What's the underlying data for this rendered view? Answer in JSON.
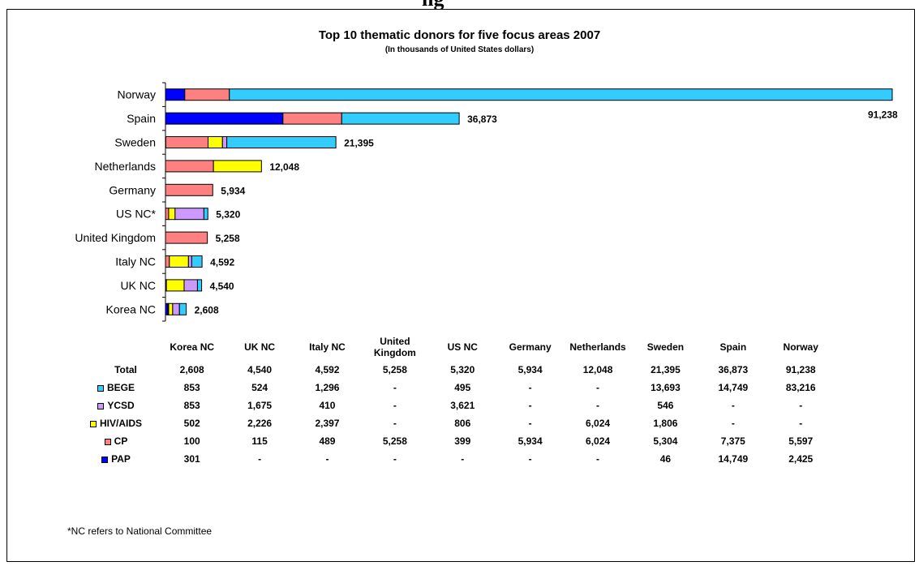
{
  "header_partial_text": "ng",
  "chart_data": {
    "type": "bar",
    "orientation": "horizontal",
    "stacked": true,
    "title": "Top 10 thematic donors for five focus areas 2007",
    "subtitle": "(In thousands of United States dollars)",
    "categories": [
      "Norway",
      "Spain",
      "Sweden",
      "Netherlands",
      "Germany",
      "US NC*",
      "United Kingdom",
      "Italy NC",
      "UK NC",
      "Korea NC"
    ],
    "totals": [
      91238,
      36873,
      21395,
      12048,
      5934,
      5320,
      5258,
      4592,
      4540,
      2608
    ],
    "total_labels": [
      "91,238",
      "36,873",
      "21,395",
      "12,048",
      "5,934",
      "5,320",
      "5,258",
      "4,592",
      "4,540",
      "2,608"
    ],
    "series": [
      {
        "name": "PAP",
        "color": "#0000FF",
        "values": [
          2425,
          14749,
          46,
          0,
          0,
          0,
          0,
          0,
          0,
          301
        ]
      },
      {
        "name": "CP",
        "color": "#FF8080",
        "values": [
          5597,
          7375,
          5304,
          6024,
          5934,
          399,
          5258,
          489,
          115,
          100
        ]
      },
      {
        "name": "HIV/AIDS",
        "color": "#FFFF00",
        "values": [
          0,
          0,
          1806,
          6024,
          0,
          806,
          0,
          2397,
          2226,
          502
        ]
      },
      {
        "name": "YCSD",
        "color": "#CC99FF",
        "values": [
          0,
          0,
          546,
          0,
          0,
          3621,
          0,
          410,
          1675,
          853
        ]
      },
      {
        "name": "BEGE",
        "color": "#33CCFF",
        "values": [
          83216,
          14749,
          13693,
          0,
          0,
          495,
          0,
          1296,
          524,
          853
        ]
      }
    ],
    "xlim": [
      0,
      91238
    ],
    "grid": false,
    "legend": "table-row-labels"
  },
  "table": {
    "columns": [
      "Korea NC",
      "UK NC",
      "Italy NC",
      "United Kingdom",
      "US NC",
      "Germany",
      "Netherlands",
      "Sweden",
      "Spain",
      "Norway"
    ],
    "rows": [
      {
        "label": "Total",
        "color": "",
        "cells": [
          "2,608",
          "4,540",
          "4,592",
          "5,258",
          "5,320",
          "5,934",
          "12,048",
          "21,395",
          "36,873",
          "91,238"
        ]
      },
      {
        "label": "BEGE",
        "color": "#33CCFF",
        "cells": [
          "853",
          "524",
          "1,296",
          "-",
          "495",
          "-",
          "-",
          "13,693",
          "14,749",
          "83,216"
        ]
      },
      {
        "label": "YCSD",
        "color": "#CC99FF",
        "cells": [
          "853",
          "1,675",
          "410",
          "-",
          "3,621",
          "-",
          "-",
          "546",
          "-",
          "-"
        ]
      },
      {
        "label": "HIV/AIDS",
        "color": "#FFFF00",
        "cells": [
          "502",
          "2,226",
          "2,397",
          "-",
          "806",
          "-",
          "6,024",
          "1,806",
          "-",
          "-"
        ]
      },
      {
        "label": "CP",
        "color": "#FF8080",
        "cells": [
          "100",
          "115",
          "489",
          "5,258",
          "399",
          "5,934",
          "6,024",
          "5,304",
          "7,375",
          "5,597"
        ]
      },
      {
        "label": "PAP",
        "color": "#0000FF",
        "cells": [
          "301",
          "-",
          "-",
          "-",
          "-",
          "-",
          "-",
          "46",
          "14,749",
          "2,425"
        ]
      }
    ]
  },
  "footnote": "*NC refers to National Committee"
}
